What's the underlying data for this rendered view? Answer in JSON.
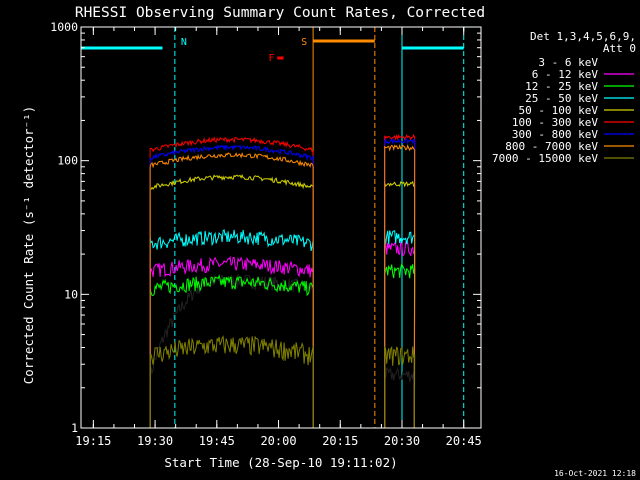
{
  "chart_data": {
    "type": "line",
    "title": "RHESSI Observing Summary Count Rates, Corrected",
    "xlabel": "Start Time (28-Sep-10 19:11:02)",
    "ylabel": "Corrected Count Rate (s⁻¹ detector⁻¹)",
    "y_scale": "log",
    "ylim": [
      1,
      1000
    ],
    "xlim_minutes": [
      19.2,
      20.82
    ],
    "x_ticks": [
      {
        "label": "19:15",
        "value": 19.25
      },
      {
        "label": "19:30",
        "value": 19.5
      },
      {
        "label": "19:45",
        "value": 19.75
      },
      {
        "label": "20:00",
        "value": 20.0
      },
      {
        "label": "20:15",
        "value": 20.25
      },
      {
        "label": "20:30",
        "value": 20.5
      },
      {
        "label": "20:45",
        "value": 20.75
      }
    ],
    "y_ticks": [
      {
        "label": "1",
        "value": 1
      },
      {
        "label": "10",
        "value": 10
      },
      {
        "label": "100",
        "value": 100
      },
      {
        "label": "1000",
        "value": 1000
      }
    ],
    "legend": {
      "header": [
        "Det 1,3,4,5,6,9,",
        "Att 0"
      ],
      "placement": "right"
    },
    "footer_timestamp": "16-Oct-2021 12:18",
    "series": [
      {
        "name": "3 - 6 keV",
        "color": "#000000"
      },
      {
        "name": "6 - 12 keV",
        "color": "#ff00ff"
      },
      {
        "name": "12 - 25 keV",
        "color": "#00ff00"
      },
      {
        "name": "25 - 50 keV",
        "color": "#00ffff"
      },
      {
        "name": "50 - 100 keV",
        "color": "#d4d400"
      },
      {
        "name": "100 - 300 keV",
        "color": "#ff0000"
      },
      {
        "name": "300 - 800 keV",
        "color": "#0000ff"
      },
      {
        "name": "800 - 7000 keV",
        "color": "#ff8c00"
      },
      {
        "name": "7000 - 15000 keV",
        "color": "#808000"
      }
    ],
    "segments": [
      {
        "start": 19.48,
        "end": 20.14,
        "levels": [
          8,
          15,
          11,
          24,
          63,
          120,
          105,
          92,
          3.5
        ]
      },
      {
        "start": 20.43,
        "end": 20.55,
        "levels": [
          2.5,
          22,
          15,
          27,
          67,
          150,
          140,
          125,
          3.5
        ]
      }
    ],
    "annotations": [
      {
        "label": "N",
        "color": "#00ffff",
        "x": 19.58
      },
      {
        "label": "F",
        "color": "#ff0000",
        "x": 20.0
      },
      {
        "label": "S",
        "color": "#ff8c00",
        "x": 20.14
      }
    ],
    "night_bars": [
      [
        19.2,
        19.53
      ],
      [
        20.5,
        20.75
      ]
    ],
    "saa_bar": [
      20.14,
      20.39
    ]
  }
}
